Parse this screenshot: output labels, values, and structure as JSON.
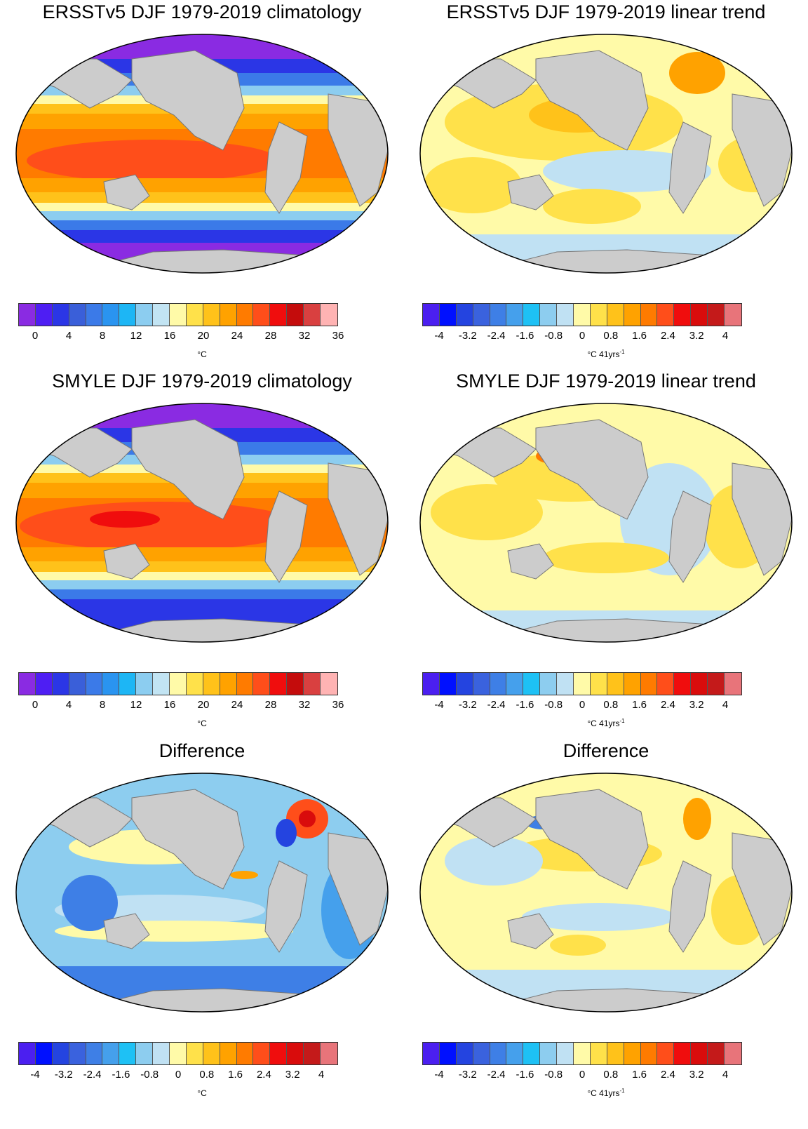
{
  "clim_colors": [
    "#8a2be2",
    "#4e1ef3",
    "#2b36e6",
    "#3a5fd9",
    "#3b7ae8",
    "#2a94f0",
    "#1db6f5",
    "#8ccdf0",
    "#c2e4f3",
    "#fffaa8",
    "#ffe14a",
    "#ffc21a",
    "#ffa200",
    "#ff7b00",
    "#ff4e1a",
    "#f00d0d",
    "#c40c0c",
    "#d94040",
    "#ffb3b3"
  ],
  "trend_colors": [
    "#4b1ff0",
    "#0010ff",
    "#2444e0",
    "#3a62de",
    "#3e7fe6",
    "#45a0ec",
    "#1ec1f5",
    "#8dcdef",
    "#c0e1f3",
    "#fffaa8",
    "#ffe14a",
    "#ffc21a",
    "#ffa200",
    "#ff7b00",
    "#ff4e1a",
    "#f00d0d",
    "#d90c0c",
    "#c41a1a",
    "#e8747a"
  ],
  "clim_ticks": [
    "0",
    "4",
    "8",
    "12",
    "16",
    "20",
    "24",
    "28",
    "32",
    "36"
  ],
  "trend_ticks": [
    "-4",
    "-3.2",
    "-2.4",
    "-1.6",
    "-0.8",
    "0",
    "0.8",
    "1.6",
    "2.4",
    "3.2",
    "4"
  ],
  "panels": [
    {
      "title": "ERSSTv5 DJF 1979-2019 climatology",
      "scheme": "clim",
      "unit": "°C",
      "unit_sup": ""
    },
    {
      "title": "ERSSTv5 DJF 1979-2019 linear trend",
      "scheme": "trend",
      "unit": "°C 41yrs",
      "unit_sup": "-1"
    },
    {
      "title": "SMYLE DJF 1979-2019 climatology",
      "scheme": "clim",
      "unit": "°C",
      "unit_sup": ""
    },
    {
      "title": "SMYLE DJF 1979-2019 linear trend",
      "scheme": "trend",
      "unit": "°C 41yrs",
      "unit_sup": "-1"
    },
    {
      "title": "Difference",
      "scheme": "diff",
      "unit": "°C",
      "unit_sup": ""
    },
    {
      "title": "Difference",
      "scheme": "trend",
      "unit": "°C 41yrs",
      "unit_sup": "-1"
    }
  ]
}
